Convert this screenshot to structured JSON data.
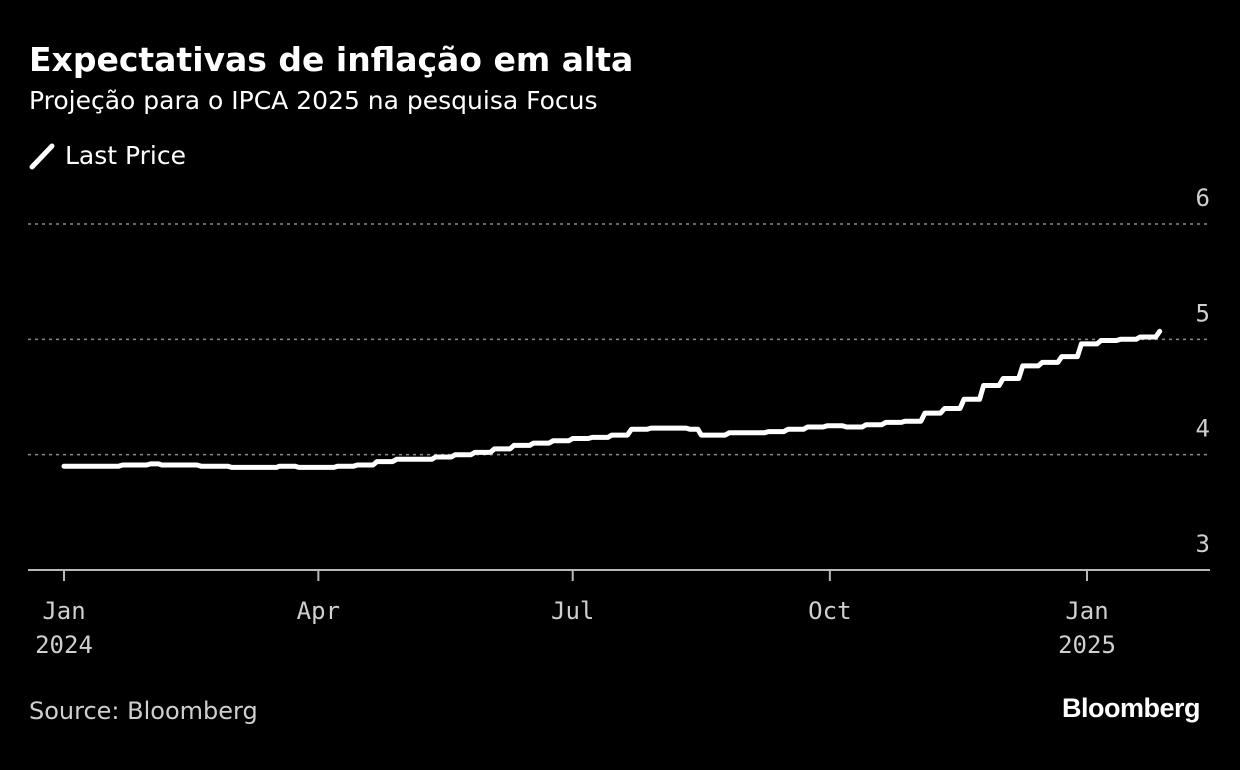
{
  "header": {
    "title": "Expectativas de inflação em alta",
    "subtitle": "Projeção para o IPCA 2025 na pesquisa Focus"
  },
  "legend": {
    "label": "Last Price"
  },
  "footer": {
    "source": "Source: Bloomberg",
    "brand": "Bloomberg"
  },
  "colors": {
    "background": "#000000",
    "line": "#ffffff",
    "grid": "#8a8a8a",
    "text": "#cfcfcf"
  },
  "chart_data": {
    "type": "line",
    "title": "Expectativas de inflação em alta",
    "subtitle": "Projeção para o IPCA 2025 na pesquisa Focus",
    "xlabel": "",
    "ylabel": "",
    "ylim": [
      3,
      6
    ],
    "yticks": [
      "3",
      "4",
      "5",
      "6"
    ],
    "xlim": [
      "2023-12-15",
      "2025-02-28"
    ],
    "xticks": [
      {
        "date": "2024-01-01",
        "line1": "Jan",
        "line2": "2024"
      },
      {
        "date": "2024-04-01",
        "line1": "Apr",
        "line2": ""
      },
      {
        "date": "2024-07-01",
        "line1": "Jul",
        "line2": ""
      },
      {
        "date": "2024-10-01",
        "line1": "Oct",
        "line2": ""
      },
      {
        "date": "2025-01-01",
        "line1": "Jan",
        "line2": "2025"
      }
    ],
    "grid": true,
    "legend_position": "top-left",
    "series": [
      {
        "name": "Last Price",
        "points": [
          [
            "2024-01-01",
            3.9
          ],
          [
            "2024-01-15",
            3.9
          ],
          [
            "2024-01-22",
            3.91
          ],
          [
            "2024-02-01",
            3.92
          ],
          [
            "2024-02-05",
            3.91
          ],
          [
            "2024-02-19",
            3.9
          ],
          [
            "2024-03-01",
            3.89
          ],
          [
            "2024-03-15",
            3.89
          ],
          [
            "2024-03-18",
            3.9
          ],
          [
            "2024-03-25",
            3.89
          ],
          [
            "2024-04-08",
            3.9
          ],
          [
            "2024-04-15",
            3.91
          ],
          [
            "2024-04-22",
            3.94
          ],
          [
            "2024-04-29",
            3.96
          ],
          [
            "2024-05-06",
            3.96
          ],
          [
            "2024-05-13",
            3.98
          ],
          [
            "2024-05-20",
            4.0
          ],
          [
            "2024-05-27",
            4.02
          ],
          [
            "2024-06-03",
            4.05
          ],
          [
            "2024-06-10",
            4.08
          ],
          [
            "2024-06-17",
            4.1
          ],
          [
            "2024-06-24",
            4.12
          ],
          [
            "2024-07-01",
            4.14
          ],
          [
            "2024-07-08",
            4.15
          ],
          [
            "2024-07-15",
            4.17
          ],
          [
            "2024-07-22",
            4.22
          ],
          [
            "2024-07-29",
            4.23
          ],
          [
            "2024-08-05",
            4.23
          ],
          [
            "2024-08-12",
            4.22
          ],
          [
            "2024-08-16",
            4.17
          ],
          [
            "2024-08-19",
            4.17
          ],
          [
            "2024-08-26",
            4.19
          ],
          [
            "2024-09-02",
            4.19
          ],
          [
            "2024-09-09",
            4.2
          ],
          [
            "2024-09-16",
            4.22
          ],
          [
            "2024-09-23",
            4.24
          ],
          [
            "2024-09-30",
            4.25
          ],
          [
            "2024-10-07",
            4.24
          ],
          [
            "2024-10-14",
            4.26
          ],
          [
            "2024-10-21",
            4.28
          ],
          [
            "2024-10-28",
            4.29
          ],
          [
            "2024-11-04",
            4.36
          ],
          [
            "2024-11-11",
            4.4
          ],
          [
            "2024-11-18",
            4.48
          ],
          [
            "2024-11-25",
            4.6
          ],
          [
            "2024-12-02",
            4.66
          ],
          [
            "2024-12-09",
            4.77
          ],
          [
            "2024-12-16",
            4.8
          ],
          [
            "2024-12-23",
            4.85
          ],
          [
            "2024-12-30",
            4.96
          ],
          [
            "2025-01-06",
            4.99
          ],
          [
            "2025-01-13",
            5.0
          ],
          [
            "2025-01-20",
            5.02
          ],
          [
            "2025-01-27",
            5.07
          ]
        ]
      }
    ]
  }
}
